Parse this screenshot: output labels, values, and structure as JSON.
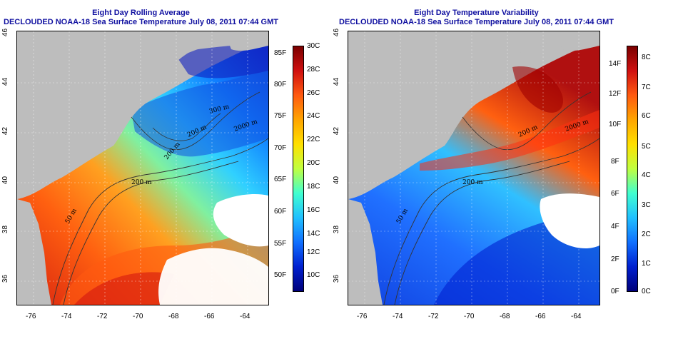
{
  "panels": [
    {
      "title": "Eight Day Rolling Average",
      "subtitle": "DECLOUDED NOAA-18 Sea Surface Temperature July 08, 2011 07:44 GMT",
      "x_ticks": [
        "-76",
        "-74",
        "-72",
        "-70",
        "-68",
        "-66",
        "-64"
      ],
      "y_ticks": [
        "36",
        "38",
        "40",
        "42",
        "44",
        "46"
      ],
      "contour_labels": [
        "50 m",
        "200 m",
        "200 m",
        "2000 m",
        "200 m",
        "300 m"
      ],
      "colorbar": {
        "left_labels": [
          "85F",
          "80F",
          "75F",
          "70F",
          "65F",
          "60F",
          "55F",
          "50F"
        ],
        "right_labels": [
          "30C",
          "28C",
          "26C",
          "24C",
          "22C",
          "20C",
          "18C",
          "16C",
          "14C",
          "12C",
          "10C"
        ]
      }
    },
    {
      "title": "Eight Day Temperature Variability",
      "subtitle": "DECLOUDED NOAA-18 Sea Surface Temperature July 08, 2011 07:44 GMT",
      "x_ticks": [
        "-76",
        "-74",
        "-72",
        "-70",
        "-68",
        "-66",
        "-64"
      ],
      "y_ticks": [
        "36",
        "38",
        "40",
        "42",
        "44",
        "46"
      ],
      "contour_labels": [
        "200 m",
        "2000 m",
        "200 m",
        "50 m"
      ],
      "colorbar": {
        "left_labels": [
          "14F",
          "12F",
          "10F",
          "8F",
          "6F",
          "4F",
          "2F",
          "0F"
        ],
        "right_labels": [
          "8C",
          "7C",
          "6C",
          "5C",
          "4C",
          "3C",
          "2C",
          "1C",
          "0C"
        ]
      }
    }
  ],
  "colors": {
    "land": "#bdbdbd",
    "title": "#1010a0",
    "palette": [
      "#7a0000",
      "#d01010",
      "#ff5a10",
      "#ffa500",
      "#ffe000",
      "#c0ff40",
      "#40ffd0",
      "#20c0ff",
      "#1070ff",
      "#0020d0",
      "#00007a"
    ]
  }
}
